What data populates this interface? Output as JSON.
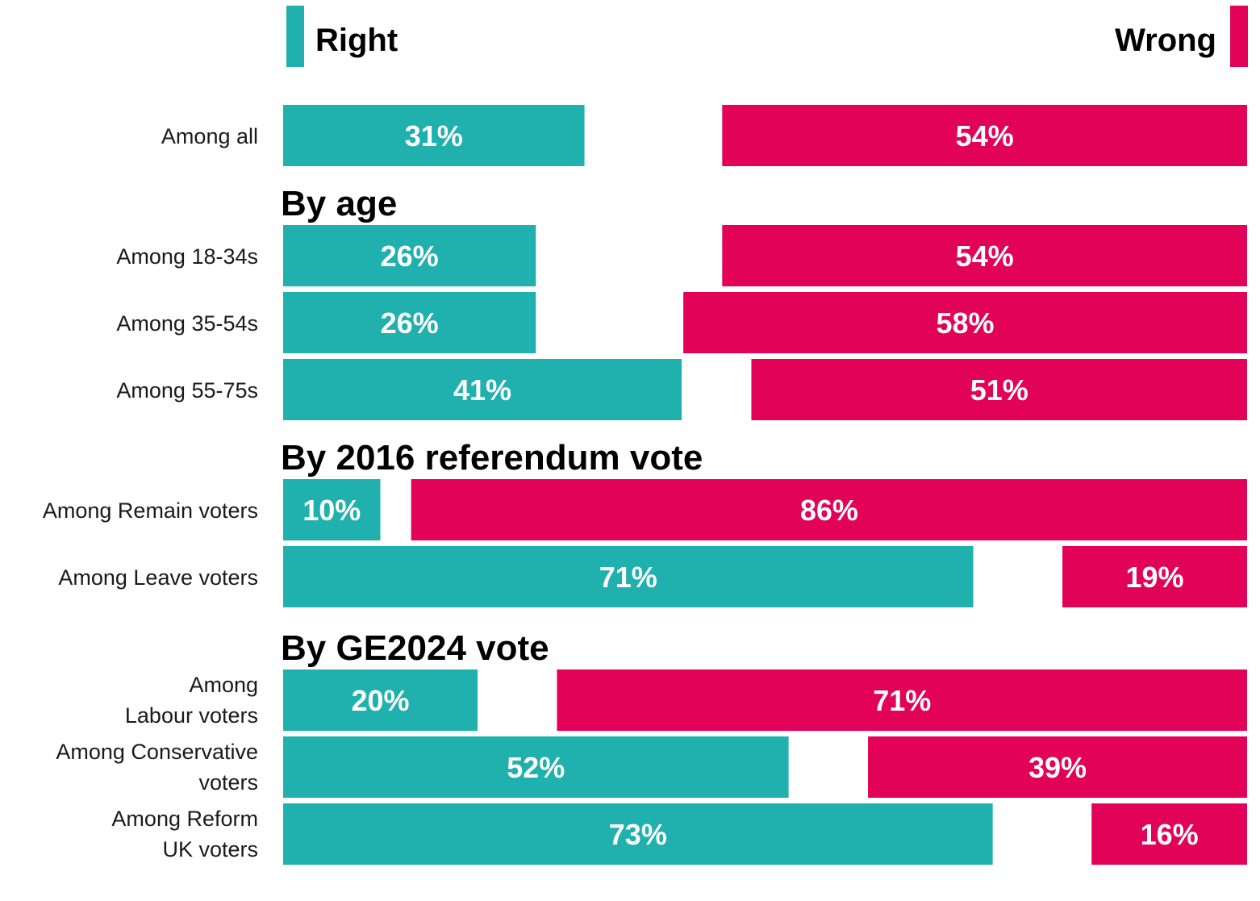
{
  "chart_data": {
    "type": "bar",
    "orientation": "horizontal",
    "stacking": "diverging-split",
    "legend": {
      "placement": "top",
      "items": [
        {
          "key": "right",
          "label": "Right",
          "color": "#20b0ae"
        },
        {
          "key": "wrong",
          "label": "Wrong",
          "color": "#e20257"
        }
      ]
    },
    "value_format": "percent",
    "rows": [
      {
        "kind": "row",
        "label": [
          "Among all"
        ],
        "right": 31,
        "wrong": 54
      },
      {
        "kind": "section",
        "title": "By age"
      },
      {
        "kind": "row",
        "label": [
          "Among 18-34s"
        ],
        "right": 26,
        "wrong": 54
      },
      {
        "kind": "row",
        "label": [
          "Among 35-54s"
        ],
        "right": 26,
        "wrong": 58
      },
      {
        "kind": "row",
        "label": [
          "Among 55-75s"
        ],
        "right": 41,
        "wrong": 51
      },
      {
        "kind": "section",
        "title": "By 2016 referendum vote"
      },
      {
        "kind": "row",
        "label": [
          "Among Remain voters"
        ],
        "right": 10,
        "wrong": 86
      },
      {
        "kind": "row",
        "label": [
          "Among Leave voters"
        ],
        "right": 71,
        "wrong": 19
      },
      {
        "kind": "section",
        "title": "By GE2024 vote"
      },
      {
        "kind": "row",
        "label": [
          "Among",
          "Labour voters"
        ],
        "right": 20,
        "wrong": 71
      },
      {
        "kind": "row",
        "label": [
          "Among Conservative",
          "voters"
        ],
        "right": 52,
        "wrong": 39
      },
      {
        "kind": "row",
        "label": [
          "Among Reform",
          "UK voters"
        ],
        "right": 73,
        "wrong": 16
      }
    ]
  }
}
